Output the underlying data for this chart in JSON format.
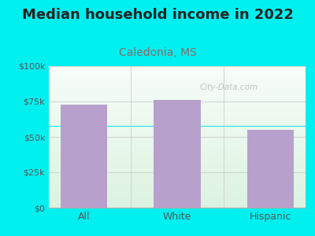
{
  "title": "Median household income in 2022",
  "subtitle": "Caledonia, MS",
  "categories": [
    "All",
    "White",
    "Hispanic"
  ],
  "values": [
    73000,
    76000,
    55000
  ],
  "bar_color": "#b8a0cc",
  "background_outer": "#00f0f0",
  "title_color": "#222222",
  "subtitle_color": "#8a6a6a",
  "title_fontsize": 13,
  "subtitle_fontsize": 10,
  "tick_color": "#555555",
  "ylim": [
    0,
    100000
  ],
  "yticks": [
    0,
    25000,
    50000,
    75000,
    100000
  ],
  "ytick_labels": [
    "$0",
    "$25k",
    "$50k",
    "$75k",
    "$100k"
  ],
  "watermark": "City-Data.com"
}
